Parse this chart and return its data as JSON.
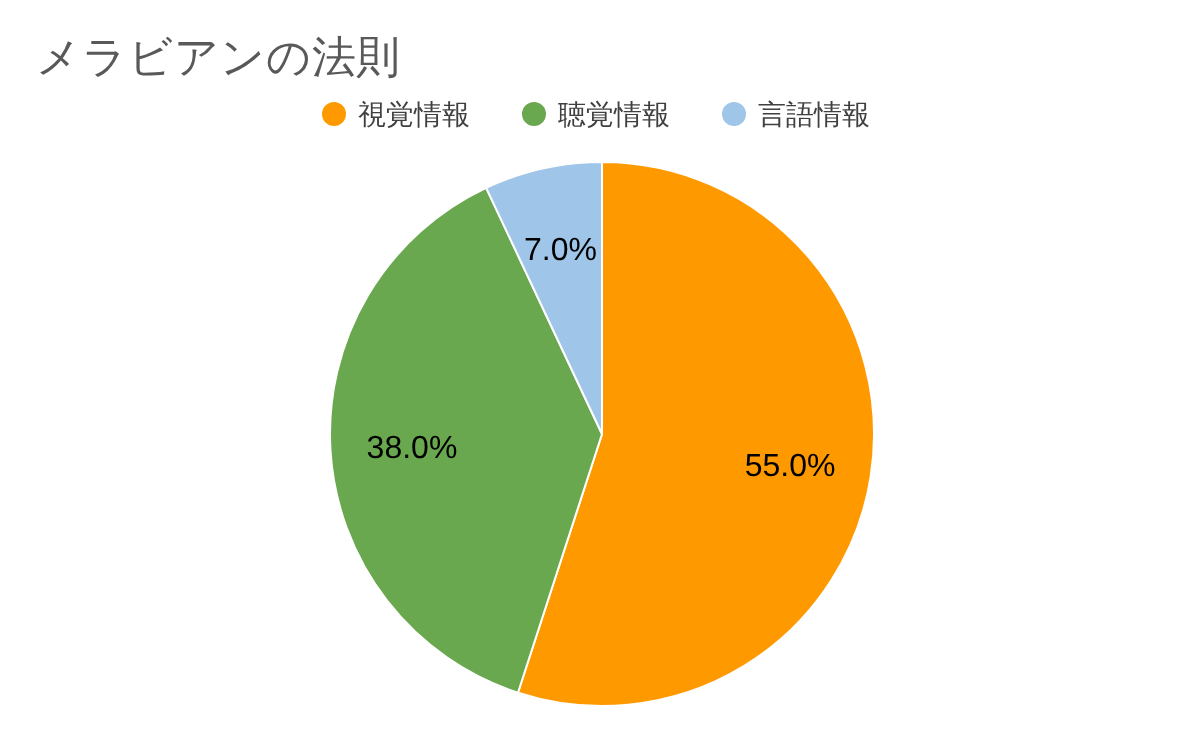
{
  "chart_data": {
    "type": "pie",
    "title": "メラビアンの法則",
    "categories": [
      "視覚情報",
      "聴覚情報",
      "言語情報"
    ],
    "values": [
      55,
      38,
      7
    ],
    "colors": [
      "#ff9900",
      "#6aa84f",
      "#9fc5e8"
    ],
    "value_labels": [
      "55.0%",
      "38.0%",
      "7.0%"
    ],
    "legend": "top"
  }
}
